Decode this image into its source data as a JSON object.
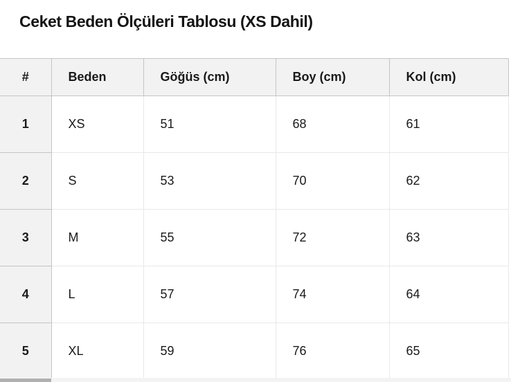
{
  "title": "Ceket Beden Ölçüleri Tablosu (XS Dahil)",
  "table": {
    "type": "table",
    "columns": [
      "#",
      "Beden",
      "Göğüs (cm)",
      "Boy (cm)",
      "Kol (cm)"
    ],
    "rows": [
      [
        "1",
        "XS",
        "51",
        "68",
        "61"
      ],
      [
        "2",
        "S",
        "53",
        "70",
        "62"
      ],
      [
        "3",
        "M",
        "55",
        "72",
        "63"
      ],
      [
        "4",
        "L",
        "57",
        "74",
        "64"
      ],
      [
        "5",
        "XL",
        "59",
        "76",
        "65"
      ]
    ]
  },
  "colors": {
    "header_bg": "#f2f2f2",
    "header_border": "#c4c4c4",
    "cell_border": "#e8e8e8",
    "text": "#1a1a1a",
    "scrollbar_track": "#f3f3f3",
    "scrollbar_thumb": "#b0b0b0"
  }
}
